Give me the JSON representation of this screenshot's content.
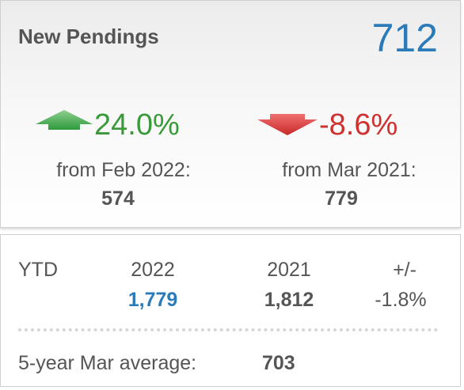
{
  "header": {
    "title": "New Pendings",
    "total": "712"
  },
  "changes": [
    {
      "percent": "24.0%",
      "label": "from Feb 2022:",
      "value": "574",
      "direction": "up"
    },
    {
      "percent": "-8.6%",
      "label": "from Mar 2021:",
      "value": "779",
      "direction": "down"
    }
  ],
  "ytd": {
    "label": "YTD",
    "columns": [
      {
        "header": "2022",
        "value": "1,779"
      },
      {
        "header": "2021",
        "value": "1,812"
      },
      {
        "header": "+/-",
        "value": "-1.8%"
      }
    ]
  },
  "average": {
    "label": "5-year Mar average:",
    "value": "703"
  }
}
